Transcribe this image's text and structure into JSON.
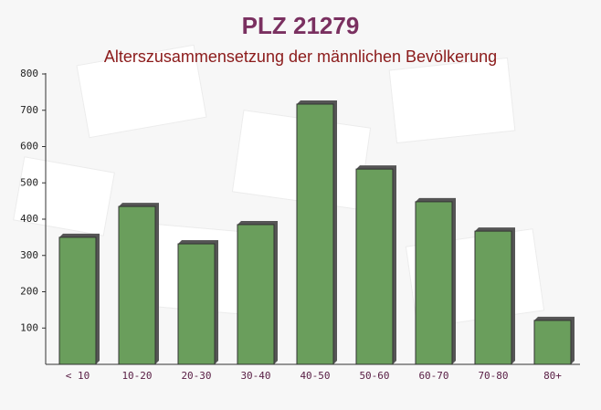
{
  "chart_data": {
    "type": "bar",
    "title": "PLZ 21279",
    "subtitle": "Alterszusammensetzung der männlichen Bevölkerung",
    "categories": [
      "< 10",
      "10-20",
      "20-30",
      "30-40",
      "40-50",
      "50-60",
      "60-70",
      "70-80",
      "80+"
    ],
    "values": [
      350,
      435,
      332,
      385,
      717,
      538,
      448,
      367,
      121
    ],
    "color": "#6a9e5c",
    "ylim": [
      0,
      800
    ],
    "yticks": [
      100,
      200,
      300,
      400,
      500,
      600,
      700,
      800
    ]
  }
}
